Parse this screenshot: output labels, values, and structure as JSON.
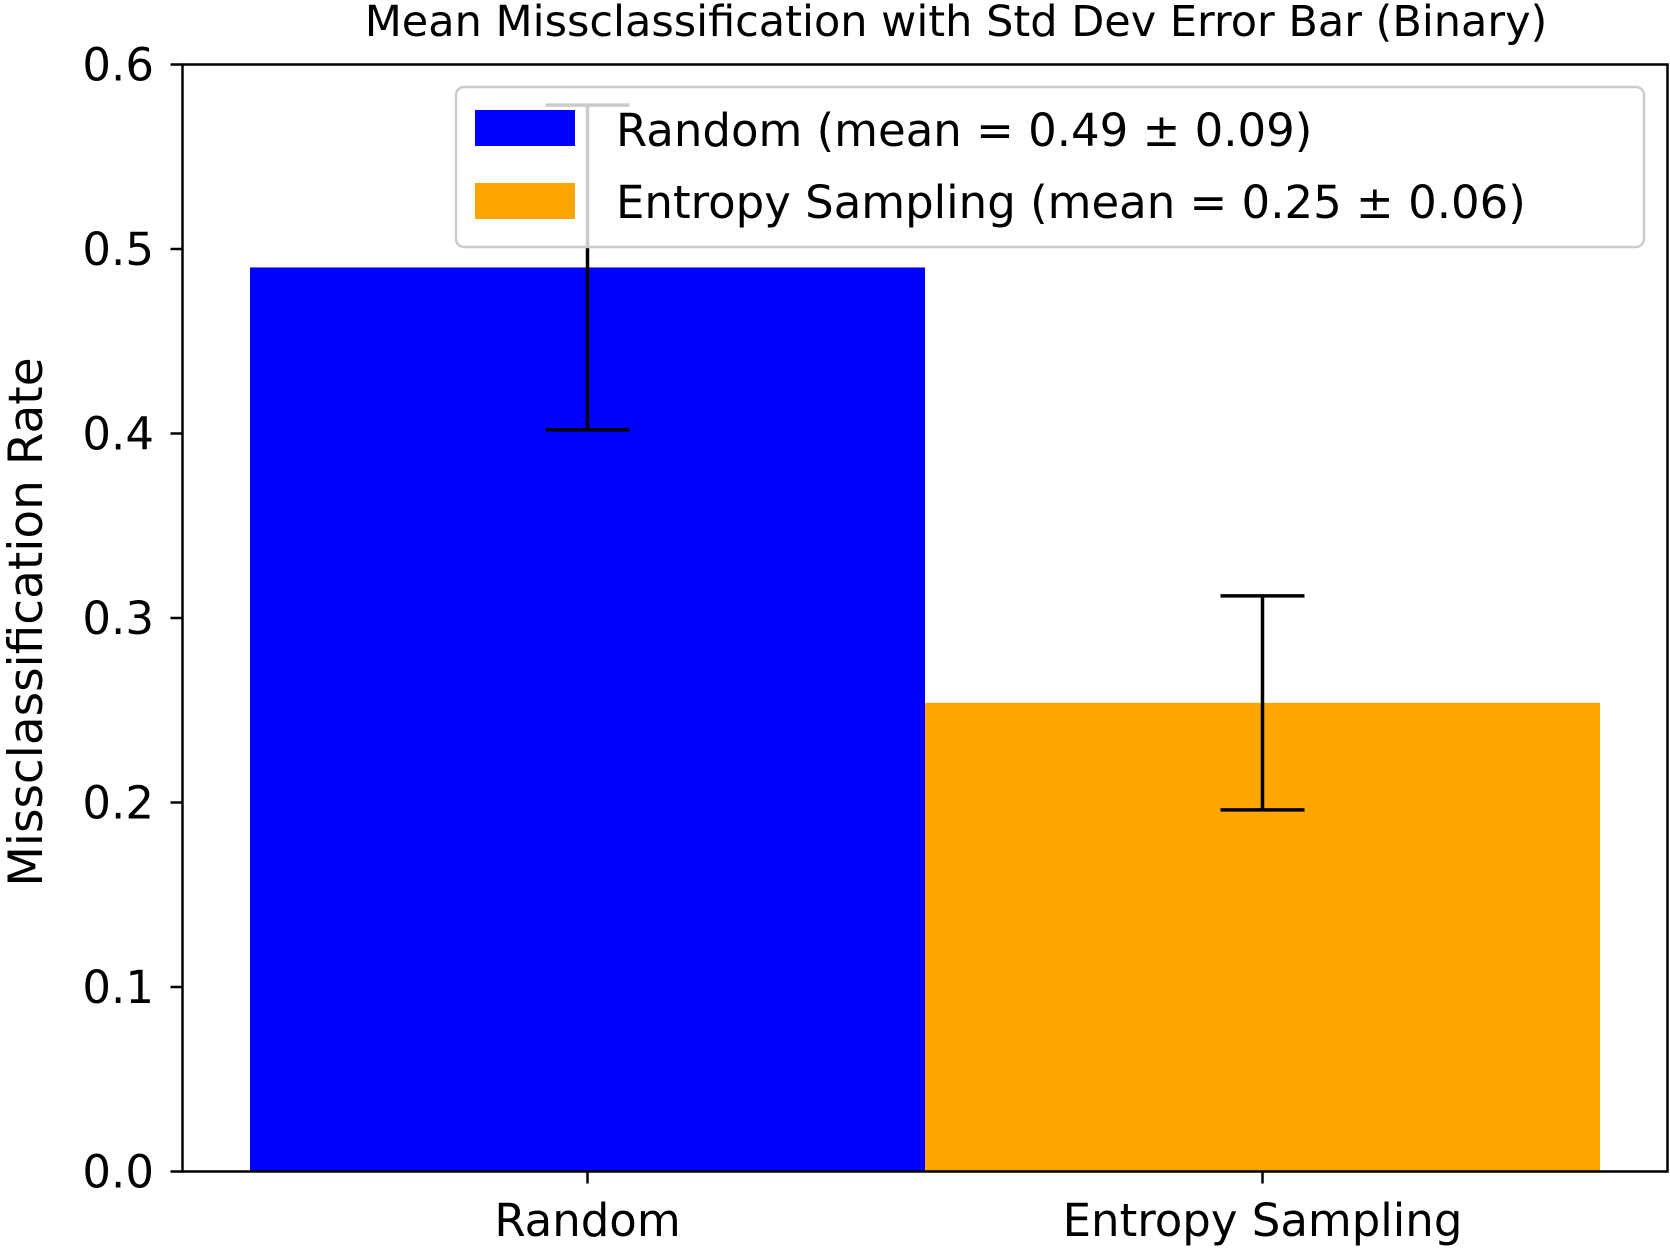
{
  "chart_data": {
    "type": "bar",
    "title": "Mean Missclassification with Std Dev Error Bar (Binary)",
    "xlabel": "",
    "ylabel": "Missclassification Rate",
    "categories": [
      "Random",
      "Entropy Sampling"
    ],
    "values": [
      0.49,
      0.254
    ],
    "errors": [
      0.088,
      0.058
    ],
    "colors": [
      "#0000ff",
      "#ffa500"
    ],
    "ylim": [
      0,
      0.6
    ],
    "yticks": [
      "0.0",
      "0.1",
      "0.2",
      "0.3",
      "0.4",
      "0.5",
      "0.6"
    ],
    "grid": false,
    "legend": {
      "placement": "top-right",
      "entries": [
        {
          "label": "Random (mean = 0.49 ± 0.09)",
          "color": "#0000ff"
        },
        {
          "label": "Entropy Sampling (mean = 0.25 ± 0.06)",
          "color": "#ffa500"
        }
      ]
    }
  }
}
